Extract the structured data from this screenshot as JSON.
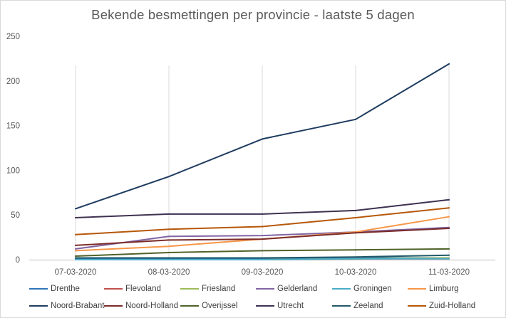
{
  "chart_data": {
    "type": "line",
    "title": "Bekende  besmettingen  per provincie  - laatste 5 dagen",
    "xlabel": "",
    "ylabel": "",
    "x": [
      "07-03-2020",
      "08-03-2020",
      "09-03-2020",
      "10-03-2020",
      "11-03-2020"
    ],
    "ylim": [
      0,
      250
    ],
    "yticks": [
      0,
      50,
      100,
      150,
      200,
      250
    ],
    "grid": "vertical",
    "legend_position": "bottom",
    "series": [
      {
        "name": "Drenthe",
        "color": "#2e75b6",
        "values": [
          1,
          1,
          1,
          2,
          2
        ]
      },
      {
        "name": "Flevoland",
        "color": "#c0504d",
        "values": [
          0,
          0,
          0,
          1,
          1
        ]
      },
      {
        "name": "Friesland",
        "color": "#9bbb59",
        "values": [
          0,
          0,
          0,
          1,
          2
        ]
      },
      {
        "name": "Gelderland",
        "color": "#8064a2",
        "values": [
          12,
          26,
          27,
          31,
          36
        ]
      },
      {
        "name": "Groningen",
        "color": "#4bacc6",
        "values": [
          0,
          0,
          0,
          1,
          1
        ]
      },
      {
        "name": "Limburg",
        "color": "#f79646",
        "values": [
          10,
          15,
          23,
          31,
          48
        ]
      },
      {
        "name": "Noord-Brabant",
        "color": "#1f3c60",
        "values": [
          57,
          93,
          135,
          157,
          219
        ]
      },
      {
        "name": "Noord-Holland",
        "color": "#7b2c2a",
        "values": [
          16,
          22,
          23,
          30,
          35
        ]
      },
      {
        "name": "Overijssel",
        "color": "#4f6228",
        "values": [
          4,
          8,
          10,
          11,
          12
        ]
      },
      {
        "name": "Utrecht",
        "color": "#3f3151",
        "values": [
          47,
          51,
          51,
          55,
          67
        ]
      },
      {
        "name": "Zeeland",
        "color": "#215968",
        "values": [
          2,
          2,
          2,
          3,
          5
        ]
      },
      {
        "name": "Zuid-Holland",
        "color": "#b65708",
        "values": [
          28,
          34,
          37,
          47,
          58
        ]
      }
    ]
  }
}
